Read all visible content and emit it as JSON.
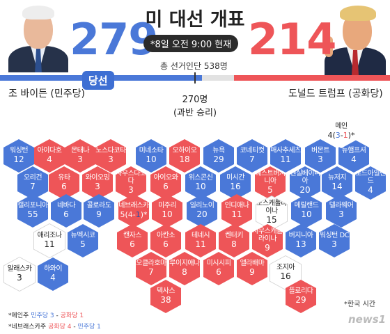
{
  "header": {
    "title": "미 대선 개표",
    "datetime": "*8일 오전 9:00 현재",
    "total_electors": "총 선거인단 538명",
    "biden_votes": "279",
    "trump_votes": "214",
    "winner_badge": "당선",
    "biden_name": "조 바이든 (민주당)",
    "trump_name": "도널드 트럼프 (공화당)",
    "majority_line1": "270명",
    "majority_line2": "(과반 승리)"
  },
  "colors": {
    "democrat": "#4a78d8",
    "republican": "#ee5558",
    "undecided": "#ffffff"
  },
  "states": [
    {
      "id": "wa",
      "name": "워싱턴",
      "ev": "12",
      "party": "D"
    },
    {
      "id": "id",
      "name": "아이다호",
      "ev": "4",
      "party": "R"
    },
    {
      "id": "mt",
      "name": "몬태나",
      "ev": "3",
      "party": "R"
    },
    {
      "id": "nd",
      "name": "노스다코타",
      "ev": "3",
      "party": "R"
    },
    {
      "id": "mn",
      "name": "미네소타",
      "ev": "10",
      "party": "D"
    },
    {
      "id": "oh",
      "name": "오하이오",
      "ev": "18",
      "party": "R"
    },
    {
      "id": "ny",
      "name": "뉴욕",
      "ev": "29",
      "party": "D"
    },
    {
      "id": "ct",
      "name": "코네티컷",
      "ev": "7",
      "party": "D"
    },
    {
      "id": "ma",
      "name": "매사추세츠",
      "ev": "11",
      "party": "D"
    },
    {
      "id": "vt",
      "name": "버몬트",
      "ev": "3",
      "party": "D"
    },
    {
      "id": "nh",
      "name": "뉴햄프셔",
      "ev": "4",
      "party": "D"
    },
    {
      "id": "or",
      "name": "오리건",
      "ev": "7",
      "party": "D"
    },
    {
      "id": "ut",
      "name": "유타",
      "ev": "6",
      "party": "R"
    },
    {
      "id": "wy",
      "name": "와이오밍",
      "ev": "3",
      "party": "R"
    },
    {
      "id": "sd",
      "name": "사우스다코다",
      "ev": "3",
      "party": "R"
    },
    {
      "id": "ia",
      "name": "아이오와",
      "ev": "6",
      "party": "R"
    },
    {
      "id": "wi",
      "name": "위스콘신",
      "ev": "10",
      "party": "D"
    },
    {
      "id": "mi",
      "name": "미시간",
      "ev": "16",
      "party": "D"
    },
    {
      "id": "wv",
      "name": "웨스트버지니아",
      "ev": "5",
      "party": "R"
    },
    {
      "id": "pa",
      "name": "펜실베이니아",
      "ev": "20",
      "party": "D"
    },
    {
      "id": "nj",
      "name": "뉴저지",
      "ev": "14",
      "party": "D"
    },
    {
      "id": "ri",
      "name": "로드아일랜드",
      "ev": "4",
      "party": "D"
    },
    {
      "id": "ca",
      "name": "캘리포니아",
      "ev": "55",
      "party": "D"
    },
    {
      "id": "nv",
      "name": "네바다",
      "ev": "6",
      "party": "D"
    },
    {
      "id": "co",
      "name": "콜로라도",
      "ev": "9",
      "party": "D"
    },
    {
      "id": "ne",
      "name": "네브래스카",
      "ev": "5",
      "party": "R",
      "split": true
    },
    {
      "id": "mo",
      "name": "미주리",
      "ev": "10",
      "party": "R"
    },
    {
      "id": "il",
      "name": "일리노이",
      "ev": "20",
      "party": "D"
    },
    {
      "id": "in",
      "name": "인디애나",
      "ev": "11",
      "party": "R"
    },
    {
      "id": "nc",
      "name": "노스캐롤라이나",
      "ev": "15",
      "party": "U"
    },
    {
      "id": "md",
      "name": "메릴랜드",
      "ev": "10",
      "party": "D"
    },
    {
      "id": "de",
      "name": "델라웨어",
      "ev": "3",
      "party": "D"
    },
    {
      "id": "az",
      "name": "애리조나",
      "ev": "11",
      "party": "U"
    },
    {
      "id": "nm",
      "name": "뉴멕시코",
      "ev": "5",
      "party": "D"
    },
    {
      "id": "ks",
      "name": "캔자스",
      "ev": "6",
      "party": "R"
    },
    {
      "id": "ar",
      "name": "아칸소",
      "ev": "6",
      "party": "R"
    },
    {
      "id": "tn",
      "name": "테네시",
      "ev": "11",
      "party": "R"
    },
    {
      "id": "ky",
      "name": "켄터키",
      "ev": "8",
      "party": "R"
    },
    {
      "id": "sc",
      "name": "사우스캐롤라이나",
      "ev": "9",
      "party": "R"
    },
    {
      "id": "va",
      "name": "버지니아",
      "ev": "13",
      "party": "D"
    },
    {
      "id": "dc",
      "name": "워싱턴 DC",
      "ev": "3",
      "party": "D"
    },
    {
      "id": "ok",
      "name": "오클라호마",
      "ev": "7",
      "party": "R"
    },
    {
      "id": "la",
      "name": "루이지애나",
      "ev": "8",
      "party": "R"
    },
    {
      "id": "ms",
      "name": "미시시피",
      "ev": "6",
      "party": "R"
    },
    {
      "id": "al",
      "name": "앨라배마",
      "ev": "9",
      "party": "R"
    },
    {
      "id": "ga",
      "name": "조지아",
      "ev": "16",
      "party": "U"
    },
    {
      "id": "tx",
      "name": "텍사스",
      "ev": "38",
      "party": "R"
    },
    {
      "id": "fl",
      "name": "플로리다",
      "ev": "29",
      "party": "R"
    },
    {
      "id": "ak",
      "name": "알래스카",
      "ev": "3",
      "party": "U"
    },
    {
      "id": "hi",
      "name": "하와이",
      "ev": "4",
      "party": "D"
    }
  ],
  "maine": {
    "name": "메인",
    "ev": "4",
    "split_d": "3",
    "split_r": "1"
  },
  "nebraska_split": {
    "r": "4",
    "d": "1"
  },
  "notes": {
    "me_label": "*메인주",
    "me_d": "민주당 3",
    "me_sep": " - ",
    "me_r": "공화당 1",
    "ne_label": "*네브래스카주",
    "ne_r": "공화당 4",
    "ne_sep": " - ",
    "ne_d": "민주당 1"
  },
  "timezone_note": "*한국 시간",
  "logo": "news1"
}
